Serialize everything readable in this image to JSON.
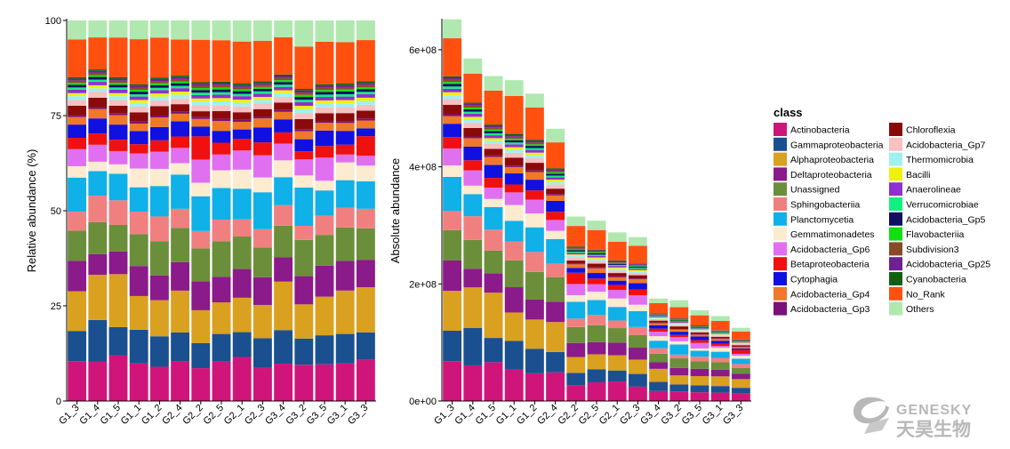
{
  "samples": [
    "G1_3",
    "G1_4",
    "G1_5",
    "G1_1",
    "G1_2",
    "G2_4",
    "G2_2",
    "G2_5",
    "G2_1",
    "G2_3",
    "G3_4",
    "G3_2",
    "G3_5",
    "G3_1",
    "G3_3"
  ],
  "legend": {
    "title": "class",
    "items": [
      {
        "name": "Actinobacteria",
        "color": "#D0157A"
      },
      {
        "name": "Gammaproteobacteria",
        "color": "#1A5090"
      },
      {
        "name": "Alphaproteobacteria",
        "color": "#DAA020"
      },
      {
        "name": "Deltaproteobacteria",
        "color": "#8B1A8A"
      },
      {
        "name": "Unassigned",
        "color": "#6B8E3A"
      },
      {
        "name": "Sphingobacteriia",
        "color": "#F08080"
      },
      {
        "name": "Planctomycetia",
        "color": "#10B0E8"
      },
      {
        "name": "Gemmatimonadetes",
        "color": "#FDEBD0"
      },
      {
        "name": "Acidobacteria_Gp6",
        "color": "#E070F0"
      },
      {
        "name": "Betaproteobacteria",
        "color": "#F01010"
      },
      {
        "name": "Cytophagia",
        "color": "#1010E0"
      },
      {
        "name": "Acidobacteria_Gp4",
        "color": "#F07828"
      },
      {
        "name": "Acidobacteria_Gp3",
        "color": "#7A107A"
      },
      {
        "name": "Chloroflexia",
        "color": "#8A0A0A"
      },
      {
        "name": "Acidobacteria_Gp7",
        "color": "#F8C0C0"
      },
      {
        "name": "Thermomicrobia",
        "color": "#A0F0F0"
      },
      {
        "name": "Bacilli",
        "color": "#F0F010"
      },
      {
        "name": "Anaerolineae",
        "color": "#9030D0"
      },
      {
        "name": "Verrucomicrobiae",
        "color": "#10F080"
      },
      {
        "name": "Acidobacteria_Gp5",
        "color": "#101060"
      },
      {
        "name": "Flavobacteriia",
        "color": "#10E010"
      },
      {
        "name": "Subdivision3",
        "color": "#8A4A2A"
      },
      {
        "name": "Acidobacteria_Gp25",
        "color": "#702090"
      },
      {
        "name": "Cyanobacteria",
        "color": "#106010"
      },
      {
        "name": "No_Rank",
        "color": "#FF5010"
      },
      {
        "name": "Others",
        "color": "#B0E8B0"
      }
    ]
  },
  "chart_data": [
    {
      "type": "bar",
      "stacked": true,
      "ylabel": "Relative abundance (%)",
      "ylim": [
        0,
        100
      ],
      "yticks": [
        "0",
        "25",
        "50",
        "75",
        "100"
      ],
      "ytick_values": [
        0,
        25,
        50,
        75,
        100
      ],
      "categories": [
        "G1_3",
        "G1_4",
        "G1_5",
        "G1_1",
        "G1_2",
        "G2_4",
        "G2_2",
        "G2_5",
        "G2_1",
        "G2_3",
        "G3_4",
        "G3_2",
        "G3_5",
        "G3_1",
        "G3_3"
      ],
      "series": [
        {
          "name": "Actinobacteria",
          "values": [
            10.5,
            10.5,
            12,
            10,
            9,
            10.5,
            8.5,
            10,
            11.5,
            9,
            10,
            9,
            9.5,
            9.5,
            10.5
          ]
        },
        {
          "name": "Gammaproteobacteria",
          "values": [
            8,
            11,
            7.5,
            9,
            8,
            7.5,
            6.5,
            7,
            6.5,
            8,
            9,
            6.5,
            7.5,
            7.5,
            7
          ]
        },
        {
          "name": "Alphaproteobacteria",
          "values": [
            10.5,
            12,
            14,
            9,
            9.5,
            11,
            8.5,
            8,
            9,
            9,
            13,
            8.5,
            10,
            11,
            11.5
          ]
        },
        {
          "name": "Deltaproteobacteria",
          "values": [
            8,
            5.5,
            6,
            8,
            6.5,
            7.5,
            7.5,
            6.5,
            7.5,
            7.5,
            6.5,
            7,
            8,
            7.5,
            7
          ]
        },
        {
          "name": "Unassigned",
          "values": [
            8,
            8.5,
            7,
            8.5,
            9,
            9,
            8.5,
            9,
            8.5,
            8,
            8.5,
            9,
            8,
            8.5,
            8
          ]
        },
        {
          "name": "Sphingobacteriia",
          "values": [
            5,
            7,
            6.5,
            6,
            6.5,
            5,
            4.5,
            5.5,
            4.5,
            5,
            5.5,
            3.5,
            5,
            5,
            5
          ]
        },
        {
          "name": "Planctomycetia",
          "values": [
            9,
            6.5,
            7,
            6.5,
            8,
            9,
            9,
            8,
            8,
            10,
            7.5,
            9.5,
            6.5,
            7,
            7
          ]
        },
        {
          "name": "Gemmatimonadetes",
          "values": [
            3,
            2.5,
            2.5,
            5,
            4.5,
            3,
            3.5,
            4.5,
            5,
            4,
            4.5,
            3,
            2.5,
            4.5,
            4
          ]
        },
        {
          "name": "Acidobacteria_Gp6",
          "values": [
            4.5,
            4.5,
            3.5,
            4,
            4.5,
            4,
            6,
            4,
            5,
            6,
            4.5,
            4,
            6,
            2,
            2.5
          ]
        },
        {
          "name": "Betaproteobacteria",
          "values": [
            3,
            3,
            3,
            2.5,
            3,
            3,
            6,
            3,
            3,
            3.5,
            3,
            2,
            3,
            2.5,
            5
          ]
        },
        {
          "name": "Cytophagia",
          "values": [
            3.5,
            4,
            4,
            3.5,
            3.5,
            4,
            2.5,
            3,
            2.5,
            4,
            3.5,
            3,
            4,
            3.5,
            2
          ]
        },
        {
          "name": "Acidobacteria_Gp4",
          "values": [
            2,
            2.5,
            2.5,
            2,
            2.5,
            2,
            2,
            2.5,
            2,
            2.5,
            2,
            2,
            2,
            2,
            2
          ]
        },
        {
          "name": "Acidobacteria_Gp3",
          "values": [
            0.5,
            0.5,
            0.5,
            0.5,
            0.5,
            0.5,
            0.5,
            0.5,
            0.5,
            0.5,
            0.5,
            0.5,
            0.5,
            0.5,
            0.5
          ]
        },
        {
          "name": "Chloroflexia",
          "values": [
            2.5,
            2.5,
            2,
            2.5,
            2.5,
            2,
            1.5,
            2,
            2,
            2,
            2,
            2.5,
            2,
            2,
            2
          ]
        },
        {
          "name": "Acidobacteria_Gp7",
          "values": [
            1.5,
            1.5,
            1.5,
            1.5,
            1.5,
            1.5,
            1.5,
            1.5,
            1.5,
            1.5,
            1.5,
            1.5,
            1.5,
            1.5,
            1.5
          ]
        },
        {
          "name": "Thermomicrobia",
          "values": [
            1,
            1,
            1,
            1,
            1,
            1,
            1,
            1,
            1,
            1,
            1,
            1,
            1,
            1,
            1
          ]
        },
        {
          "name": "Bacilli",
          "values": [
            0.8,
            0.8,
            0.8,
            0.8,
            0.8,
            0.8,
            0.8,
            0.8,
            0.8,
            0.8,
            0.8,
            0.8,
            0.8,
            0.8,
            0.8
          ]
        },
        {
          "name": "Anaerolineae",
          "values": [
            0.9,
            0.9,
            0.9,
            0.9,
            0.9,
            0.9,
            0.9,
            0.9,
            0.9,
            0.9,
            0.9,
            0.9,
            0.9,
            0.9,
            0.9
          ]
        },
        {
          "name": "Verrucomicrobiae",
          "values": [
            0.6,
            0.6,
            0.6,
            0.6,
            0.6,
            0.6,
            0.6,
            0.6,
            0.6,
            0.6,
            0.6,
            0.6,
            0.6,
            0.6,
            0.6
          ]
        },
        {
          "name": "Acidobacteria_Gp5",
          "values": [
            0.7,
            0.7,
            0.7,
            0.7,
            0.7,
            0.7,
            0.7,
            0.7,
            0.7,
            0.7,
            0.7,
            0.7,
            0.7,
            0.7,
            0.7
          ]
        },
        {
          "name": "Flavobacteriia",
          "values": [
            0.5,
            0.5,
            0.5,
            0.5,
            0.5,
            0.5,
            0.5,
            0.5,
            0.5,
            0.5,
            0.5,
            0.5,
            0.5,
            0.5,
            0.5
          ]
        },
        {
          "name": "Subdivision3",
          "values": [
            0.6,
            0.6,
            0.6,
            0.6,
            0.6,
            0.6,
            0.6,
            0.6,
            0.6,
            0.6,
            0.6,
            0.6,
            0.6,
            0.6,
            0.6
          ]
        },
        {
          "name": "Acidobacteria_Gp25",
          "values": [
            0.5,
            0.5,
            0.5,
            0.5,
            0.5,
            0.5,
            0.5,
            0.5,
            0.5,
            0.5,
            0.5,
            0.5,
            0.5,
            0.5,
            0.5
          ]
        },
        {
          "name": "Cyanobacteria",
          "values": [
            0.4,
            0.4,
            0.4,
            0.4,
            0.4,
            0.4,
            0.4,
            0.4,
            0.4,
            0.4,
            0.4,
            0.4,
            0.4,
            0.4,
            0.4
          ]
        },
        {
          "name": "No_Rank",
          "values": [
            10,
            8.5,
            10.5,
            12,
            10.5,
            9.5,
            11,
            10.5,
            11,
            11,
            10,
            10.5,
            11,
            10.5,
            10.5
          ]
        },
        {
          "name": "Others",
          "values": [
            5,
            4.5,
            4.5,
            5,
            4.5,
            5,
            5,
            5,
            5.5,
            5.5,
            4.5,
            6.5,
            5.5,
            5.5,
            5
          ]
        }
      ]
    },
    {
      "type": "bar",
      "stacked": true,
      "ylabel": "Absolute abundance",
      "ylim": [
        0,
        650000000
      ],
      "yticks": [
        "0e+00",
        "2e+08",
        "4e+08",
        "6e+08"
      ],
      "ytick_values": [
        0,
        200000000,
        400000000,
        600000000
      ],
      "categories": [
        "G1_3",
        "G1_4",
        "G1_5",
        "G1_1",
        "G1_2",
        "G2_4",
        "G2_2",
        "G2_5",
        "G2_1",
        "G2_3",
        "G3_4",
        "G3_2",
        "G3_5",
        "G3_1",
        "G3_3"
      ],
      "totals": [
        652000000,
        585000000,
        555000000,
        548000000,
        525000000,
        465000000,
        315000000,
        308000000,
        288000000,
        280000000,
        175000000,
        172000000,
        155000000,
        145000000,
        125000000
      ]
    }
  ],
  "watermark": {
    "en": "GENESKY",
    "cn": "天昊生物"
  }
}
